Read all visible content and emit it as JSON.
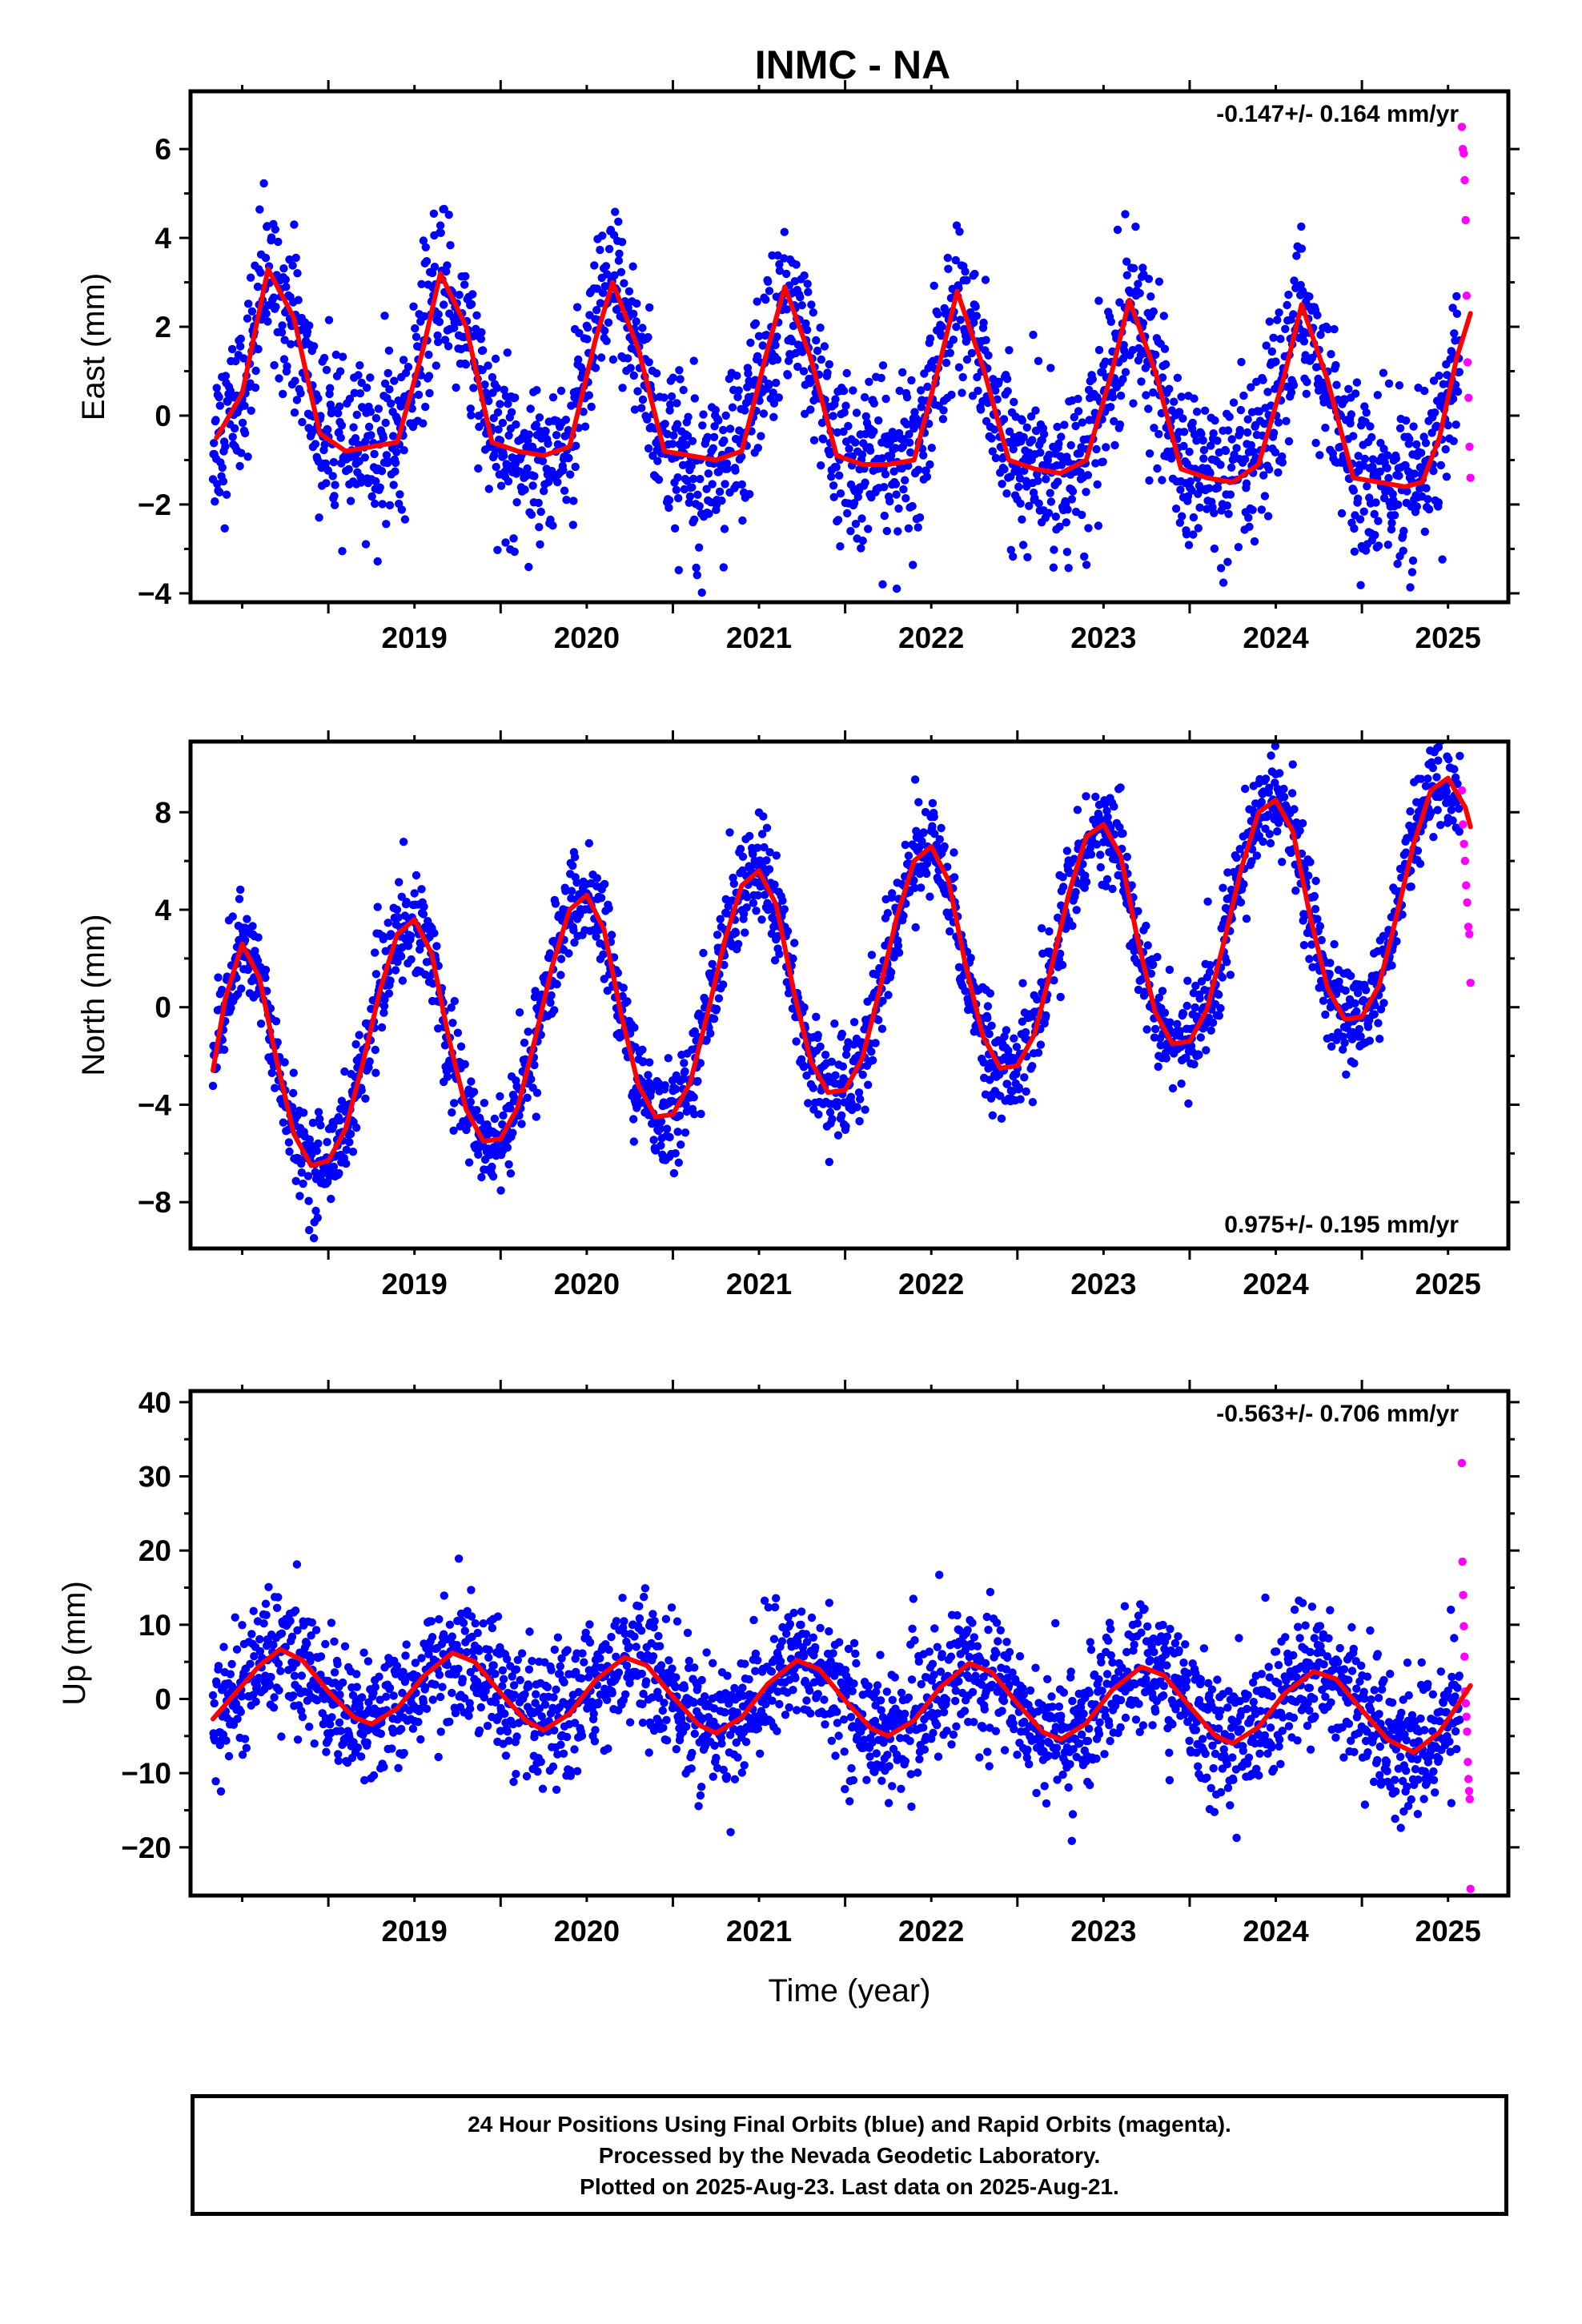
{
  "title": "INMC - NA",
  "colors": {
    "final": "#0000ff",
    "rapid": "#ff00ff",
    "fit": "#ff0000",
    "frame": "#000000"
  },
  "chart_data": [
    {
      "type": "scatter",
      "title": "INMC - NA",
      "xlabel": "",
      "ylabel": "East (mm)",
      "xlim": [
        2018.2,
        2025.85
      ],
      "ylim": [
        -4.2,
        7.3
      ],
      "yticks": [
        -4,
        -2,
        0,
        2,
        4,
        6
      ],
      "ytick_labels": [
        "−4",
        "−2",
        "0",
        "2",
        "4",
        "6"
      ],
      "xticks": [
        2019,
        2020,
        2021,
        2022,
        2023,
        2024,
        2025
      ],
      "xtick_labels": [
        "2019",
        "2020",
        "2021",
        "2022",
        "2023",
        "2024",
        "2025"
      ],
      "rate_label": "-0.147+/- 0.164 mm/yr",
      "rate_position": "top-right",
      "grid": false,
      "series": [
        {
          "role": "final",
          "x_range": [
            2018.33,
            2025.57
          ],
          "seasonal_amplitude": 2.1,
          "peak_phase": 0.67,
          "noise": 0.9
        },
        {
          "role": "rapid",
          "x_range": [
            2025.58,
            2025.63
          ],
          "values": [
            6.5,
            6.0,
            5.9,
            5.3,
            4.4,
            2.7,
            1.2,
            0.4,
            -0.7,
            -1.4
          ]
        },
        {
          "role": "fit",
          "points": [
            [
              2018.35,
              -0.5
            ],
            [
              2018.5,
              0.5
            ],
            [
              2018.65,
              3.3
            ],
            [
              2018.8,
              2.2
            ],
            [
              2018.95,
              -0.4
            ],
            [
              2019.1,
              -0.8
            ],
            [
              2019.25,
              -0.7
            ],
            [
              2019.4,
              -0.6
            ],
            [
              2019.55,
              1.5
            ],
            [
              2019.65,
              3.2
            ],
            [
              2019.8,
              2.0
            ],
            [
              2019.95,
              -0.6
            ],
            [
              2020.1,
              -0.8
            ],
            [
              2020.25,
              -0.9
            ],
            [
              2020.4,
              -0.7
            ],
            [
              2020.55,
              1.7
            ],
            [
              2020.65,
              3.0
            ],
            [
              2020.8,
              1.5
            ],
            [
              2020.95,
              -0.8
            ],
            [
              2021.1,
              -0.9
            ],
            [
              2021.25,
              -1.0
            ],
            [
              2021.4,
              -0.8
            ],
            [
              2021.55,
              1.5
            ],
            [
              2021.65,
              2.9
            ],
            [
              2021.8,
              1.3
            ],
            [
              2021.95,
              -0.9
            ],
            [
              2022.1,
              -1.1
            ],
            [
              2022.25,
              -1.1
            ],
            [
              2022.4,
              -1.0
            ],
            [
              2022.55,
              1.2
            ],
            [
              2022.65,
              2.8
            ],
            [
              2022.8,
              1.1
            ],
            [
              2022.95,
              -1.0
            ],
            [
              2023.1,
              -1.2
            ],
            [
              2023.25,
              -1.3
            ],
            [
              2023.4,
              -1.0
            ],
            [
              2023.55,
              1.0
            ],
            [
              2023.65,
              2.6
            ],
            [
              2023.8,
              1.0
            ],
            [
              2023.95,
              -1.2
            ],
            [
              2024.1,
              -1.4
            ],
            [
              2024.25,
              -1.5
            ],
            [
              2024.4,
              -1.1
            ],
            [
              2024.55,
              0.9
            ],
            [
              2024.65,
              2.5
            ],
            [
              2024.8,
              0.8
            ],
            [
              2024.95,
              -1.4
            ],
            [
              2025.1,
              -1.5
            ],
            [
              2025.25,
              -1.6
            ],
            [
              2025.35,
              -1.5
            ],
            [
              2025.45,
              -0.5
            ],
            [
              2025.55,
              1.3
            ],
            [
              2025.63,
              2.3
            ]
          ]
        }
      ]
    },
    {
      "type": "scatter",
      "xlabel": "",
      "ylabel": "North (mm)",
      "xlim": [
        2018.2,
        2025.85
      ],
      "ylim": [
        -9.9,
        10.9
      ],
      "yticks": [
        -8,
        -4,
        0,
        4,
        8
      ],
      "ytick_labels": [
        "−8",
        "−4",
        "0",
        "4",
        "8"
      ],
      "xticks": [
        2019,
        2020,
        2021,
        2022,
        2023,
        2024,
        2025
      ],
      "xtick_labels": [
        "2019",
        "2020",
        "2021",
        "2022",
        "2023",
        "2024",
        "2025"
      ],
      "rate_label": "0.975+/- 0.195 mm/yr",
      "rate_position": "bottom-right",
      "grid": false,
      "series": [
        {
          "role": "final",
          "x_range": [
            2018.33,
            2025.57
          ],
          "seasonal_amplitude": 4.6,
          "peak_phase": 0.5,
          "noise": 1.0
        },
        {
          "role": "rapid",
          "x_range": [
            2025.58,
            2025.63
          ],
          "values": [
            8.9,
            7.5,
            6.7,
            6.0,
            5.0,
            4.3,
            3.3,
            3.0,
            1.0
          ]
        },
        {
          "role": "fit",
          "points": [
            [
              2018.33,
              -2.6
            ],
            [
              2018.4,
              0.3
            ],
            [
              2018.5,
              2.6
            ],
            [
              2018.6,
              1.2
            ],
            [
              2018.7,
              -2.2
            ],
            [
              2018.8,
              -5.2
            ],
            [
              2018.9,
              -6.5
            ],
            [
              2019.0,
              -6.3
            ],
            [
              2019.1,
              -5.0
            ],
            [
              2019.2,
              -2.3
            ],
            [
              2019.3,
              0.7
            ],
            [
              2019.4,
              3.0
            ],
            [
              2019.5,
              3.6
            ],
            [
              2019.6,
              2.2
            ],
            [
              2019.7,
              -1.3
            ],
            [
              2019.8,
              -4.2
            ],
            [
              2019.9,
              -5.5
            ],
            [
              2020.0,
              -5.4
            ],
            [
              2020.1,
              -4.1
            ],
            [
              2020.2,
              -1.3
            ],
            [
              2020.3,
              1.7
            ],
            [
              2020.4,
              4.0
            ],
            [
              2020.5,
              4.6
            ],
            [
              2020.6,
              3.2
            ],
            [
              2020.7,
              -0.3
            ],
            [
              2020.8,
              -3.2
            ],
            [
              2020.9,
              -4.5
            ],
            [
              2021.0,
              -4.4
            ],
            [
              2021.1,
              -3.1
            ],
            [
              2021.2,
              -0.3
            ],
            [
              2021.3,
              2.7
            ],
            [
              2021.4,
              5.0
            ],
            [
              2021.5,
              5.6
            ],
            [
              2021.6,
              4.2
            ],
            [
              2021.7,
              0.7
            ],
            [
              2021.8,
              -2.2
            ],
            [
              2021.9,
              -3.5
            ],
            [
              2022.0,
              -3.4
            ],
            [
              2022.1,
              -2.1
            ],
            [
              2022.2,
              0.7
            ],
            [
              2022.3,
              3.7
            ],
            [
              2022.4,
              6.0
            ],
            [
              2022.5,
              6.6
            ],
            [
              2022.6,
              5.2
            ],
            [
              2022.7,
              1.7
            ],
            [
              2022.8,
              -1.2
            ],
            [
              2022.9,
              -2.5
            ],
            [
              2023.0,
              -2.4
            ],
            [
              2023.1,
              -1.1
            ],
            [
              2023.2,
              1.7
            ],
            [
              2023.3,
              4.7
            ],
            [
              2023.4,
              7.0
            ],
            [
              2023.5,
              7.5
            ],
            [
              2023.6,
              6.2
            ],
            [
              2023.7,
              2.7
            ],
            [
              2023.8,
              -0.2
            ],
            [
              2023.9,
              -1.5
            ],
            [
              2024.0,
              -1.4
            ],
            [
              2024.1,
              -0.1
            ],
            [
              2024.2,
              2.7
            ],
            [
              2024.3,
              5.7
            ],
            [
              2024.4,
              8.0
            ],
            [
              2024.5,
              8.5
            ],
            [
              2024.6,
              7.2
            ],
            [
              2024.7,
              3.7
            ],
            [
              2024.8,
              0.8
            ],
            [
              2024.9,
              -0.5
            ],
            [
              2025.0,
              -0.4
            ],
            [
              2025.1,
              0.9
            ],
            [
              2025.2,
              3.7
            ],
            [
              2025.3,
              6.7
            ],
            [
              2025.4,
              8.9
            ],
            [
              2025.5,
              9.4
            ],
            [
              2025.6,
              8.2
            ],
            [
              2025.63,
              7.4
            ]
          ]
        }
      ]
    },
    {
      "type": "scatter",
      "xlabel": "Time (year)",
      "ylabel": "Up (mm)",
      "xlim": [
        2018.2,
        2025.85
      ],
      "ylim": [
        -26.5,
        41.5
      ],
      "yticks": [
        -20,
        -10,
        0,
        10,
        20,
        30,
        40
      ],
      "ytick_labels": [
        "−20",
        "−10",
        "0",
        "10",
        "20",
        "30",
        "40"
      ],
      "xticks": [
        2019,
        2020,
        2021,
        2022,
        2023,
        2024,
        2025
      ],
      "xtick_labels": [
        "2019",
        "2020",
        "2021",
        "2022",
        "2023",
        "2024",
        "2025"
      ],
      "rate_label": "-0.563+/- 0.706 mm/yr",
      "rate_position": "top-right",
      "grid": false,
      "series": [
        {
          "role": "final",
          "x_range": [
            2018.33,
            2025.57
          ],
          "seasonal_amplitude": 5.0,
          "peak_phase": 0.72,
          "noise": 4.3
        },
        {
          "role": "rapid",
          "x_range": [
            2025.58,
            2025.63
          ],
          "values": [
            31.8,
            18.5,
            14.0,
            9.8,
            5.7,
            1.0,
            -0.6,
            -2.4,
            -4.4,
            -8.5,
            -10.8,
            -12.4,
            -13.5,
            -25.6
          ]
        },
        {
          "role": "fit",
          "points": [
            [
              2018.33,
              -2.7
            ],
            [
              2018.45,
              0.5
            ],
            [
              2018.6,
              4.5
            ],
            [
              2018.72,
              6.7
            ],
            [
              2018.85,
              5.2
            ],
            [
              2019.0,
              1.0
            ],
            [
              2019.15,
              -2.5
            ],
            [
              2019.25,
              -3.4
            ],
            [
              2019.4,
              -1.3
            ],
            [
              2019.55,
              3.0
            ],
            [
              2019.72,
              6.2
            ],
            [
              2019.85,
              5.0
            ],
            [
              2020.0,
              0.8
            ],
            [
              2020.15,
              -3.0
            ],
            [
              2020.25,
              -4.2
            ],
            [
              2020.4,
              -2.0
            ],
            [
              2020.55,
              2.5
            ],
            [
              2020.72,
              5.6
            ],
            [
              2020.85,
              4.5
            ],
            [
              2021.0,
              0.3
            ],
            [
              2021.15,
              -3.5
            ],
            [
              2021.25,
              -4.6
            ],
            [
              2021.4,
              -2.5
            ],
            [
              2021.55,
              2.0
            ],
            [
              2021.72,
              5.2
            ],
            [
              2021.85,
              4.0
            ],
            [
              2022.0,
              -0.2
            ],
            [
              2022.15,
              -4.0
            ],
            [
              2022.25,
              -5.0
            ],
            [
              2022.4,
              -2.9
            ],
            [
              2022.55,
              1.5
            ],
            [
              2022.72,
              4.8
            ],
            [
              2022.85,
              3.6
            ],
            [
              2023.0,
              -0.6
            ],
            [
              2023.15,
              -4.5
            ],
            [
              2023.25,
              -5.5
            ],
            [
              2023.4,
              -3.3
            ],
            [
              2023.55,
              1.2
            ],
            [
              2023.72,
              4.3
            ],
            [
              2023.85,
              3.2
            ],
            [
              2024.0,
              -1.0
            ],
            [
              2024.15,
              -5.0
            ],
            [
              2024.25,
              -6.0
            ],
            [
              2024.4,
              -3.8
            ],
            [
              2024.55,
              0.7
            ],
            [
              2024.72,
              3.7
            ],
            [
              2024.85,
              2.7
            ],
            [
              2025.0,
              -1.5
            ],
            [
              2025.15,
              -5.5
            ],
            [
              2025.3,
              -7.2
            ],
            [
              2025.45,
              -4.5
            ],
            [
              2025.55,
              -1.0
            ],
            [
              2025.63,
              1.8
            ]
          ]
        }
      ]
    }
  ],
  "footer": {
    "line1": "24 Hour Positions Using Final Orbits (blue) and Rapid Orbits (magenta).",
    "line2": "Processed by the Nevada Geodetic Laboratory.",
    "line3": "Plotted on 2025-Aug-23. Last data on 2025-Aug-21."
  }
}
